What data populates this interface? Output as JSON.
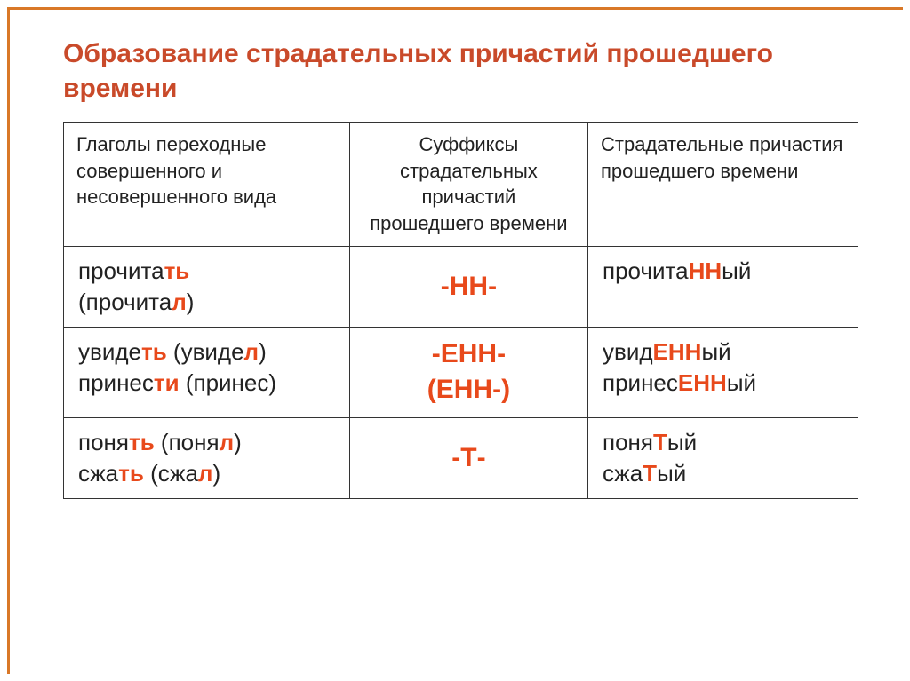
{
  "title_line1": "Образование страдательных причастий прошедшего",
  "title_line2": "времени",
  "header": {
    "col1": "Глаголы переходные совершенного и несовершенного вида",
    "col2": "Суффиксы страдательных причастий прошедшего времени",
    "col3": "Страдательные причастия прошедшего времени"
  },
  "row1": {
    "verb1_a": "прочита",
    "verb1_b": "ть",
    "verb1_c": "(прочита",
    "verb1_d": "л",
    "verb1_e": ")",
    "suffix": "-НН-",
    "part1_a": "прочита",
    "part1_b": "НН",
    "part1_c": "ый"
  },
  "row2": {
    "verb1_a": "увиде",
    "verb1_b": "ть",
    "verb1_c": " (увиде",
    "verb1_d": "л",
    "verb1_e": ")",
    "verb2_a": "принес",
    "verb2_b": "ти",
    "verb2_c": " (принес)",
    "suffix_a": "-ЕНН-",
    "suffix_b": "(ЕНН-)",
    "part1_a": "увид",
    "part1_b": "ЕНН",
    "part1_c": "ый",
    "part2_a": "принес",
    "part2_b": "ЕНН",
    "part2_c": "ый"
  },
  "row3": {
    "verb1_a": "поня",
    "verb1_b": "ть",
    "verb1_c": " (поня",
    "verb1_d": "л",
    "verb1_e": ")",
    "verb2_a": "сжа",
    "verb2_b": "ть",
    "verb2_c": " (сжа",
    "verb2_d": "л",
    "verb2_e": ")",
    "suffix": "-Т-",
    "part1_a": "поня",
    "part1_b": "Т",
    "part1_c": "ый",
    "part2_a": "сжа",
    "part2_b": "Т",
    "part2_c": "ый"
  },
  "colors": {
    "frame_border": "#d97828",
    "title_color": "#c94a2a",
    "highlight": "#e8491b",
    "text": "#222222",
    "table_border": "#333333",
    "background": "#ffffff"
  }
}
